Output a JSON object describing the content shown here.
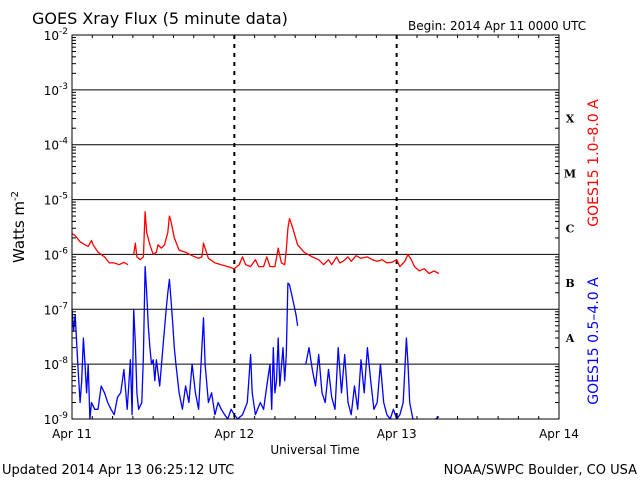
{
  "chart_data": {
    "type": "line",
    "title": "GOES Xray Flux (5 minute data)",
    "begin_label": "Begin:  2014 Apr 11 0000 UTC",
    "ylabel": "Watts m",
    "ylabel_sup": "-2",
    "xlabel": "Universal Time",
    "y_scale": "log",
    "ylim": [
      1e-09,
      0.01
    ],
    "xlim_days": [
      0,
      3
    ],
    "grid": "horizontal at each decade, dashed vertical at day boundaries",
    "y_ticks": [
      {
        "value": 0.01,
        "base": "10",
        "exp": "-2"
      },
      {
        "value": 0.001,
        "base": "10",
        "exp": "-3"
      },
      {
        "value": 0.0001,
        "base": "10",
        "exp": "-4"
      },
      {
        "value": 1e-05,
        "base": "10",
        "exp": "-5"
      },
      {
        "value": 1e-06,
        "base": "10",
        "exp": "-6"
      },
      {
        "value": 1e-07,
        "base": "10",
        "exp": "-7"
      },
      {
        "value": 1e-08,
        "base": "10",
        "exp": "-8"
      },
      {
        "value": 1e-09,
        "base": "10",
        "exp": "-9"
      }
    ],
    "x_ticks": [
      {
        "day": 0,
        "label": "Apr 11"
      },
      {
        "day": 1,
        "label": "Apr 12"
      },
      {
        "day": 2,
        "label": "Apr 13"
      },
      {
        "day": 3,
        "label": "Apr 14"
      }
    ],
    "flare_classes": [
      {
        "label": "X",
        "value": 0.0003
      },
      {
        "label": "M",
        "value": 3e-05
      },
      {
        "label": "C",
        "value": 3e-06
      },
      {
        "label": "B",
        "value": 3e-07
      },
      {
        "label": "A",
        "value": 3e-08
      }
    ],
    "series": [
      {
        "name": "GOES15 1.0–8.0 A",
        "color": "#ff0000",
        "points": [
          [
            0.0,
            2.4e-06
          ],
          [
            0.02,
            2.2e-06
          ],
          [
            0.05,
            1.7e-06
          ],
          [
            0.08,
            1.5e-06
          ],
          [
            0.1,
            1.4e-06
          ],
          [
            0.12,
            1.8e-06
          ],
          [
            0.13,
            1.5e-06
          ],
          [
            0.16,
            1.1e-06
          ],
          [
            0.2,
            9e-07
          ],
          [
            0.23,
            7e-07
          ],
          [
            0.26,
            7e-07
          ],
          [
            0.29,
            6.5e-07
          ],
          [
            0.32,
            7.2e-07
          ],
          [
            0.345,
            6.5e-07
          ],
          [
            0.35,
            null
          ],
          [
            0.38,
            1e-06
          ],
          [
            0.39,
            1.6e-06
          ],
          [
            0.4,
            9e-07
          ],
          [
            0.42,
            8e-07
          ],
          [
            0.44,
            9e-07
          ],
          [
            0.45,
            6e-06
          ],
          [
            0.46,
            2.5e-06
          ],
          [
            0.48,
            1.5e-06
          ],
          [
            0.5,
            1e-06
          ],
          [
            0.52,
            1.1e-06
          ],
          [
            0.53,
            1.5e-06
          ],
          [
            0.55,
            1.3e-06
          ],
          [
            0.57,
            1.5e-06
          ],
          [
            0.59,
            2.5e-06
          ],
          [
            0.6,
            5e-06
          ],
          [
            0.61,
            4e-06
          ],
          [
            0.63,
            2e-06
          ],
          [
            0.66,
            1.2e-06
          ],
          [
            0.7,
            1.1e-06
          ],
          [
            0.74,
            9.5e-07
          ],
          [
            0.78,
            8.5e-07
          ],
          [
            0.8,
            9e-07
          ],
          [
            0.81,
            1.6e-06
          ],
          [
            0.82,
            1.3e-06
          ],
          [
            0.84,
            8.5e-07
          ],
          [
            0.88,
            7e-07
          ],
          [
            0.92,
            6.5e-07
          ],
          [
            0.96,
            6e-07
          ],
          [
            1.0,
            5.5e-07
          ],
          [
            1.03,
            6.5e-07
          ],
          [
            1.05,
            9e-07
          ],
          [
            1.07,
            6.5e-07
          ],
          [
            1.1,
            6e-07
          ],
          [
            1.13,
            8e-07
          ],
          [
            1.15,
            6e-07
          ],
          [
            1.18,
            6e-07
          ],
          [
            1.2,
            9e-07
          ],
          [
            1.22,
            6e-07
          ],
          [
            1.25,
            6e-07
          ],
          [
            1.27,
            1.3e-06
          ],
          [
            1.29,
            7e-07
          ],
          [
            1.31,
            6.5e-07
          ],
          [
            1.32,
            1.2e-06
          ],
          [
            1.33,
            3e-06
          ],
          [
            1.34,
            4.5e-06
          ],
          [
            1.36,
            3e-06
          ],
          [
            1.39,
            1.5e-06
          ],
          [
            1.43,
            1.1e-06
          ],
          [
            1.48,
            9e-07
          ],
          [
            1.52,
            8e-07
          ],
          [
            1.55,
            6.5e-07
          ],
          [
            1.58,
            8e-07
          ],
          [
            1.6,
            6.5e-07
          ],
          [
            1.63,
            9e-07
          ],
          [
            1.65,
            7e-07
          ],
          [
            1.67,
            7.5e-07
          ],
          [
            1.7,
            9e-07
          ],
          [
            1.72,
            7.5e-07
          ],
          [
            1.75,
            9.5e-07
          ],
          [
            1.78,
            8.5e-07
          ],
          [
            1.82,
            9e-07
          ],
          [
            1.85,
            8e-07
          ],
          [
            1.88,
            7.5e-07
          ],
          [
            1.91,
            8e-07
          ],
          [
            1.94,
            7e-07
          ],
          [
            1.97,
            7.2e-07
          ],
          [
            2.0,
            8e-07
          ],
          [
            2.02,
            6e-07
          ],
          [
            2.05,
            7.5e-07
          ],
          [
            2.07,
            1e-06
          ],
          [
            2.09,
            8e-07
          ],
          [
            2.11,
            6e-07
          ],
          [
            2.14,
            5e-07
          ],
          [
            2.17,
            5.5e-07
          ],
          [
            2.2,
            4.5e-07
          ],
          [
            2.23,
            5e-07
          ],
          [
            2.26,
            4.5e-07
          ]
        ]
      },
      {
        "name": "GOES15 0.5–4.0 A",
        "color": "#0000ff",
        "points": [
          [
            0.0,
            1e-07
          ],
          [
            0.01,
            4e-08
          ],
          [
            0.02,
            8e-08
          ],
          [
            0.03,
            2e-08
          ],
          [
            0.04,
            6e-09
          ],
          [
            0.05,
            2e-09
          ],
          [
            0.06,
            5e-09
          ],
          [
            0.07,
            3e-08
          ],
          [
            0.08,
            1e-08
          ],
          [
            0.09,
            3e-09
          ],
          [
            0.1,
            1e-08
          ],
          [
            0.11,
            1e-09
          ],
          [
            0.12,
            2e-09
          ],
          [
            0.14,
            1.5e-09
          ],
          [
            0.16,
            1.5e-09
          ],
          [
            0.18,
            4e-09
          ],
          [
            0.2,
            3e-09
          ],
          [
            0.22,
            2e-09
          ],
          [
            0.24,
            1.5e-09
          ],
          [
            0.26,
            1.2e-09
          ],
          [
            0.28,
            2.5e-09
          ],
          [
            0.3,
            3e-09
          ],
          [
            0.32,
            8e-09
          ],
          [
            0.34,
            1.5e-09
          ],
          [
            0.36,
            1.2e-08
          ],
          [
            0.37,
            1.2e-09
          ],
          [
            0.38,
            1e-07
          ],
          [
            0.39,
            2.5e-08
          ],
          [
            0.4,
            3e-09
          ],
          [
            0.41,
            1.5e-09
          ],
          [
            0.43,
            2e-09
          ],
          [
            0.44,
            1.4e-08
          ],
          [
            0.45,
            6e-07
          ],
          [
            0.46,
            2e-07
          ],
          [
            0.47,
            5e-08
          ],
          [
            0.48,
            2e-08
          ],
          [
            0.49,
            1e-08
          ],
          [
            0.5,
            1.2e-08
          ],
          [
            0.51,
            5e-09
          ],
          [
            0.52,
            1.2e-08
          ],
          [
            0.54,
            4e-09
          ],
          [
            0.56,
            2e-08
          ],
          [
            0.58,
            1e-07
          ],
          [
            0.59,
            2e-07
          ],
          [
            0.6,
            3.5e-07
          ],
          [
            0.61,
            1.5e-07
          ],
          [
            0.62,
            6e-08
          ],
          [
            0.63,
            2e-08
          ],
          [
            0.64,
            1e-08
          ],
          [
            0.66,
            3e-09
          ],
          [
            0.68,
            1.5e-09
          ],
          [
            0.7,
            4e-09
          ],
          [
            0.72,
            2e-09
          ],
          [
            0.74,
            1e-08
          ],
          [
            0.76,
            3e-09
          ],
          [
            0.78,
            1.5e-09
          ],
          [
            0.8,
            2e-08
          ],
          [
            0.81,
            7e-08
          ],
          [
            0.82,
            1e-08
          ],
          [
            0.84,
            2e-09
          ],
          [
            0.86,
            3e-09
          ],
          [
            0.88,
            1.2e-09
          ],
          [
            0.9,
            2e-09
          ],
          [
            0.92,
            1.5e-09
          ],
          [
            0.94,
            1.2e-09
          ],
          [
            0.96,
            1e-09
          ],
          [
            0.98,
            1.5e-09
          ],
          [
            1.0,
            1.2e-09
          ],
          [
            1.02,
            1e-09
          ],
          [
            1.05,
            1.2e-09
          ],
          [
            1.08,
            2e-09
          ],
          [
            1.1,
            1.5e-08
          ],
          [
            1.11,
            3e-09
          ],
          [
            1.13,
            1.2e-09
          ],
          [
            1.16,
            2e-09
          ],
          [
            1.18,
            1.5e-09
          ],
          [
            1.2,
            4e-09
          ],
          [
            1.22,
            1e-08
          ],
          [
            1.23,
            1.5e-09
          ],
          [
            1.24,
            2e-08
          ],
          [
            1.25,
            3e-09
          ],
          [
            1.26,
            5e-09
          ],
          [
            1.27,
            3e-08
          ],
          [
            1.28,
            4e-09
          ],
          [
            1.3,
            2e-08
          ],
          [
            1.31,
            5e-09
          ],
          [
            1.32,
            1.5e-08
          ],
          [
            1.33,
            3e-07
          ],
          [
            1.34,
            2.8e-07
          ],
          [
            1.36,
            1.5e-07
          ],
          [
            1.38,
            8e-08
          ],
          [
            1.39,
            5e-08
          ],
          [
            1.4,
            null
          ],
          [
            1.44,
            1e-08
          ],
          [
            1.46,
            2e-08
          ],
          [
            1.48,
            8e-09
          ],
          [
            1.5,
            4e-09
          ],
          [
            1.52,
            1.5e-08
          ],
          [
            1.54,
            3e-09
          ],
          [
            1.56,
            2e-09
          ],
          [
            1.58,
            8e-09
          ],
          [
            1.6,
            2.5e-09
          ],
          [
            1.62,
            1.5e-09
          ],
          [
            1.64,
            2e-08
          ],
          [
            1.66,
            3e-09
          ],
          [
            1.68,
            1.5e-08
          ],
          [
            1.7,
            2e-09
          ],
          [
            1.72,
            1.2e-09
          ],
          [
            1.74,
            4e-09
          ],
          [
            1.76,
            1.5e-09
          ],
          [
            1.78,
            1.2e-08
          ],
          [
            1.8,
            3e-09
          ],
          [
            1.82,
            2e-08
          ],
          [
            1.84,
            5e-09
          ],
          [
            1.86,
            1.5e-09
          ],
          [
            1.88,
            2e-09
          ],
          [
            1.9,
            1e-08
          ],
          [
            1.92,
            2e-09
          ],
          [
            1.94,
            1.2e-09
          ],
          [
            1.96,
            1e-09
          ],
          [
            1.98,
            1.5e-09
          ],
          [
            2.0,
            1e-09
          ],
          [
            2.02,
            1.2e-09
          ],
          [
            2.04,
            2e-09
          ],
          [
            2.06,
            3e-08
          ],
          [
            2.07,
            1e-08
          ],
          [
            2.08,
            2e-09
          ],
          [
            2.1,
            1e-09
          ],
          [
            2.11,
            1e-09
          ],
          [
            2.12,
            null
          ],
          [
            2.24,
            1e-09
          ],
          [
            2.26,
            1.1e-09
          ]
        ]
      }
    ]
  },
  "footer": {
    "updated": "Updated 2014 Apr 13 06:25:12 UTC",
    "credit": "NOAA/SWPC Boulder, CO USA"
  }
}
